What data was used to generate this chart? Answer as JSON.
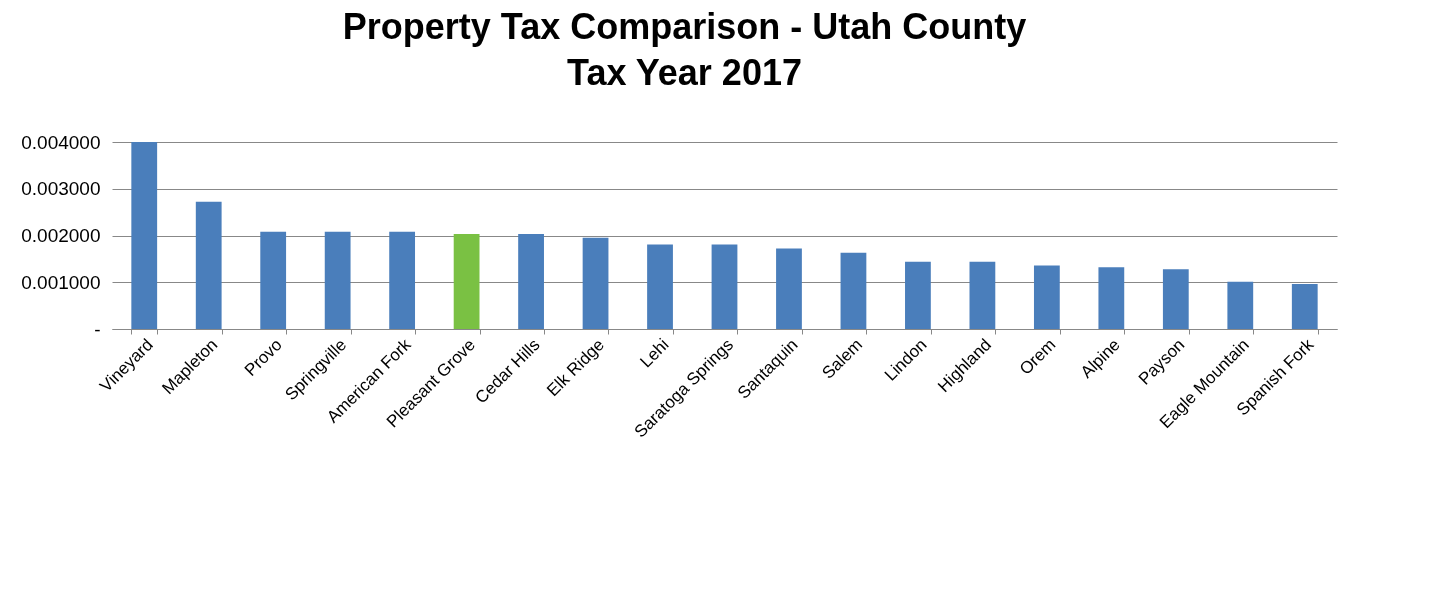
{
  "chart_data": {
    "type": "bar",
    "title": "Property Tax Comparison - Utah County",
    "subtitle": "Tax Year 2017",
    "categories": [
      "Vineyard",
      "Mapleton",
      "Provo",
      "Springville",
      "American Fork",
      "Pleasant Grove",
      "Cedar Hills",
      "Elk Ridge",
      "Lehi",
      "Saratoga Springs",
      "Santaquin",
      "Salem",
      "Lindon",
      "Highland",
      "Orem",
      "Alpine",
      "Payson",
      "Eagle Mountain",
      "Spanish Fork"
    ],
    "values": [
      0.004,
      0.00272,
      0.00208,
      0.00208,
      0.00208,
      0.00203,
      0.00203,
      0.00195,
      0.00181,
      0.00181,
      0.00172,
      0.00163,
      0.00144,
      0.00144,
      0.00136,
      0.00132,
      0.00128,
      0.00101,
      0.00096
    ],
    "colors": [
      "#4a7ebb",
      "#4a7ebb",
      "#4a7ebb",
      "#4a7ebb",
      "#4a7ebb",
      "#7ac143",
      "#4a7ebb",
      "#4a7ebb",
      "#4a7ebb",
      "#4a7ebb",
      "#4a7ebb",
      "#4a7ebb",
      "#4a7ebb",
      "#4a7ebb",
      "#4a7ebb",
      "#4a7ebb",
      "#4a7ebb",
      "#4a7ebb",
      "#4a7ebb"
    ],
    "ylim": [
      0,
      0.004
    ],
    "yticks": [
      {
        "value": 0,
        "label": "-"
      },
      {
        "value": 0.001,
        "label": "0.001000"
      },
      {
        "value": 0.002,
        "label": "0.002000"
      },
      {
        "value": 0.003,
        "label": "0.003000"
      },
      {
        "value": 0.004,
        "label": "0.004000"
      }
    ],
    "grid": "y",
    "legend": false
  }
}
